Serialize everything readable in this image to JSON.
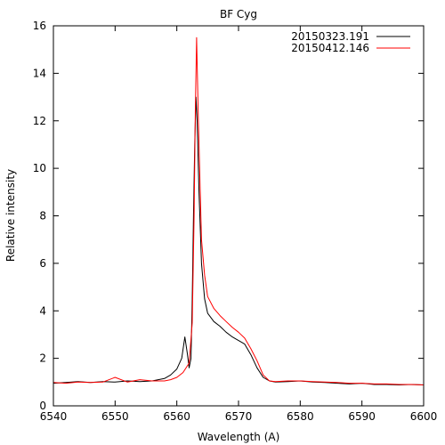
{
  "chart_data": {
    "type": "line",
    "title": "BF Cyg",
    "xlabel": "Wavelength (A)",
    "ylabel": "Relative intensity",
    "xlim": [
      6540,
      6600
    ],
    "ylim": [
      0,
      16
    ],
    "xticks": [
      6540,
      6550,
      6560,
      6570,
      6580,
      6590,
      6600
    ],
    "yticks": [
      0,
      2,
      4,
      6,
      8,
      10,
      12,
      14,
      16
    ],
    "grid": false,
    "legend_position": "top-right",
    "series": [
      {
        "name": "20150323.191",
        "color": "#000000",
        "points": [
          [
            6540.0,
            0.95
          ],
          [
            6542.0,
            0.98
          ],
          [
            6544.0,
            1.02
          ],
          [
            6546.0,
            0.98
          ],
          [
            6548.0,
            1.02
          ],
          [
            6550.0,
            1.0
          ],
          [
            6552.0,
            1.05
          ],
          [
            6554.0,
            1.02
          ],
          [
            6556.0,
            1.05
          ],
          [
            6558.0,
            1.15
          ],
          [
            6559.0,
            1.3
          ],
          [
            6560.0,
            1.55
          ],
          [
            6560.8,
            2.0
          ],
          [
            6561.3,
            2.9
          ],
          [
            6561.7,
            2.2
          ],
          [
            6562.0,
            1.6
          ],
          [
            6562.3,
            2.0
          ],
          [
            6562.5,
            4.5
          ],
          [
            6562.7,
            8.0
          ],
          [
            6562.9,
            11.0
          ],
          [
            6563.1,
            13.0
          ],
          [
            6563.3,
            12.0
          ],
          [
            6563.6,
            9.0
          ],
          [
            6564.0,
            6.0
          ],
          [
            6564.5,
            4.5
          ],
          [
            6565.0,
            3.9
          ],
          [
            6566.0,
            3.55
          ],
          [
            6567.0,
            3.35
          ],
          [
            6568.0,
            3.1
          ],
          [
            6569.0,
            2.9
          ],
          [
            6570.0,
            2.75
          ],
          [
            6571.0,
            2.6
          ],
          [
            6572.0,
            2.15
          ],
          [
            6573.0,
            1.6
          ],
          [
            6574.0,
            1.2
          ],
          [
            6575.0,
            1.05
          ],
          [
            6576.0,
            1.0
          ],
          [
            6578.0,
            1.02
          ],
          [
            6580.0,
            1.05
          ],
          [
            6582.0,
            1.0
          ],
          [
            6584.0,
            0.98
          ],
          [
            6586.0,
            0.95
          ],
          [
            6588.0,
            0.92
          ],
          [
            6590.0,
            0.95
          ],
          [
            6592.0,
            0.9
          ],
          [
            6594.0,
            0.9
          ],
          [
            6596.0,
            0.88
          ],
          [
            6598.0,
            0.9
          ],
          [
            6600.0,
            0.88
          ]
        ]
      },
      {
        "name": "20150412.146",
        "color": "#ff0000",
        "points": [
          [
            6540.0,
            0.98
          ],
          [
            6542.0,
            0.95
          ],
          [
            6544.0,
            1.0
          ],
          [
            6546.0,
            0.98
          ],
          [
            6548.0,
            1.0
          ],
          [
            6550.0,
            1.2
          ],
          [
            6552.0,
            1.0
          ],
          [
            6554.0,
            1.1
          ],
          [
            6556.0,
            1.05
          ],
          [
            6558.0,
            1.05
          ],
          [
            6559.0,
            1.1
          ],
          [
            6560.0,
            1.2
          ],
          [
            6561.0,
            1.4
          ],
          [
            6562.0,
            1.8
          ],
          [
            6562.5,
            3.5
          ],
          [
            6562.8,
            8.0
          ],
          [
            6563.0,
            12.5
          ],
          [
            6563.2,
            15.5
          ],
          [
            6563.5,
            12.0
          ],
          [
            6563.8,
            9.0
          ],
          [
            6564.0,
            7.0
          ],
          [
            6564.5,
            5.5
          ],
          [
            6565.0,
            4.6
          ],
          [
            6566.0,
            4.1
          ],
          [
            6567.0,
            3.8
          ],
          [
            6568.0,
            3.55
          ],
          [
            6569.0,
            3.3
          ],
          [
            6570.0,
            3.1
          ],
          [
            6571.0,
            2.85
          ],
          [
            6572.0,
            2.4
          ],
          [
            6573.0,
            1.9
          ],
          [
            6574.0,
            1.3
          ],
          [
            6575.0,
            1.05
          ],
          [
            6576.0,
            1.02
          ],
          [
            6578.0,
            1.05
          ],
          [
            6580.0,
            1.05
          ],
          [
            6582.0,
            1.02
          ],
          [
            6584.0,
            1.0
          ],
          [
            6586.0,
            0.98
          ],
          [
            6588.0,
            0.95
          ],
          [
            6590.0,
            0.95
          ],
          [
            6592.0,
            0.92
          ],
          [
            6594.0,
            0.92
          ],
          [
            6596.0,
            0.9
          ],
          [
            6598.0,
            0.9
          ],
          [
            6600.0,
            0.88
          ]
        ]
      }
    ]
  }
}
